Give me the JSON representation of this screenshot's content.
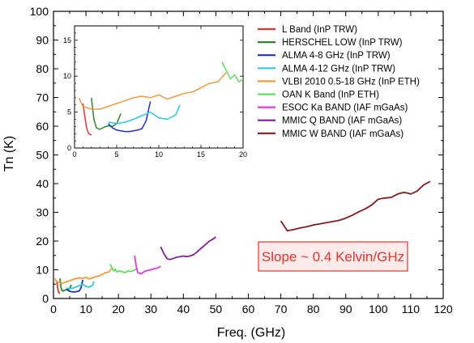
{
  "chart_data": {
    "type": "line",
    "xlabel": "Freq. (GHz)",
    "ylabel": "Tn (K)",
    "xlim": [
      0,
      120
    ],
    "ylim": [
      0,
      100
    ],
    "x_ticks": [
      0,
      10,
      20,
      30,
      40,
      50,
      60,
      70,
      80,
      90,
      100,
      110,
      120
    ],
    "y_ticks": [
      0,
      10,
      20,
      30,
      40,
      50,
      60,
      70,
      80,
      90,
      100
    ],
    "grid": false,
    "legend_position": "top-right",
    "annotation": {
      "text": "Slope ~ 0.4 Kelvin/GHz",
      "color": "#e8332a",
      "border_color": "#e8332a",
      "fill": "#fdeaea"
    },
    "series": [
      {
        "name": "L Band (InP TRW)",
        "color": "#e8332a",
        "x": [
          1.0,
          1.2,
          1.4,
          1.6,
          1.8,
          2.0
        ],
        "y": [
          6.2,
          4.5,
          3.0,
          2.2,
          1.9,
          1.8
        ]
      },
      {
        "name": "HERSCHEL LOW (InP TRW)",
        "color": "#2a8a2a",
        "x": [
          2.0,
          2.3,
          2.6,
          3.0,
          3.5,
          4.0,
          4.5,
          5.0,
          5.5
        ],
        "y": [
          7.0,
          4.0,
          2.8,
          2.6,
          2.9,
          3.1,
          3.0,
          3.4,
          4.8
        ]
      },
      {
        "name": "ALMA 4-8 GHz (InP TRW)",
        "color": "#1a2fd6",
        "x": [
          4.0,
          4.5,
          5.0,
          5.5,
          6.0,
          6.5,
          7.0,
          7.5,
          8.0,
          8.5,
          9.0
        ],
        "y": [
          3.4,
          2.8,
          2.5,
          2.4,
          2.3,
          2.3,
          2.4,
          2.5,
          2.7,
          3.8,
          6.5
        ]
      },
      {
        "name": "ALMA 4-12 GHz (InP TRW)",
        "color": "#2ec8e8",
        "x": [
          4.0,
          5.0,
          6.0,
          7.0,
          8.0,
          9.0,
          10.0,
          11.0,
          12.0,
          12.5
        ],
        "y": [
          3.6,
          3.4,
          3.6,
          4.0,
          4.5,
          5.0,
          4.2,
          4.0,
          4.6,
          6.0
        ]
      },
      {
        "name": "VLBI 2010 0.5-18 GHz (InP ETH)",
        "color": "#f39a3a",
        "x": [
          0.5,
          1.0,
          2.0,
          3.0,
          4.0,
          5.0,
          6.0,
          7.0,
          8.0,
          9.0,
          10.0,
          11.0,
          12.0,
          13.0,
          14.0,
          15.0,
          16.0,
          17.0,
          18.0
        ],
        "y": [
          7.0,
          5.8,
          5.4,
          5.4,
          5.8,
          6.2,
          6.6,
          7.0,
          7.2,
          7.0,
          7.4,
          6.8,
          7.2,
          7.6,
          7.8,
          8.4,
          9.0,
          9.2,
          10.5
        ]
      },
      {
        "name": "OAN K Band (InP ETH)",
        "color": "#5ee05e",
        "x": [
          17.5,
          18.0,
          18.5,
          19.0,
          19.5,
          20.0,
          21.0,
          22.0,
          23.0,
          24.0,
          25.0,
          26.0
        ],
        "y": [
          12.0,
          10.8,
          9.6,
          10.2,
          9.2,
          9.6,
          9.4,
          9.0,
          9.6,
          9.4,
          10.0,
          10.4
        ]
      },
      {
        "name": "ESOC Ka BAND (IAF mGaAs)",
        "color": "#e838e0",
        "x": [
          25.0,
          25.5,
          26.0,
          27.0,
          28.0,
          29.0,
          30.0,
          31.0,
          32.0,
          33.0
        ],
        "y": [
          15.0,
          11.0,
          9.0,
          8.6,
          9.4,
          9.8,
          10.0,
          10.4,
          10.6,
          11.2
        ]
      },
      {
        "name": "MMIC Q BAND (IAF mGaAs)",
        "color": "#8a1a9a",
        "x": [
          33.0,
          34.0,
          35.0,
          36.0,
          37.0,
          38.0,
          39.0,
          40.0,
          41.0,
          42.0,
          43.0,
          44.0,
          45.0,
          46.0,
          47.0,
          48.0,
          49.0,
          50.0
        ],
        "y": [
          18.0,
          15.6,
          13.8,
          13.6,
          14.0,
          14.4,
          14.6,
          14.8,
          14.6,
          14.8,
          15.2,
          16.0,
          17.0,
          18.0,
          19.0,
          20.0,
          20.6,
          21.4
        ]
      },
      {
        "name": "MMIC W BAND (IAF mGaAs)",
        "color": "#8b1a1a",
        "x": [
          70.0,
          72.0,
          74.0,
          76.0,
          78.0,
          80.0,
          82.0,
          84.0,
          86.0,
          88.0,
          90.0,
          92.0,
          94.0,
          96.0,
          98.0,
          100.0,
          102.0,
          104.0,
          106.0,
          108.0,
          110.0,
          112.0,
          114.0,
          116.0
        ],
        "y": [
          27.0,
          23.6,
          24.0,
          24.6,
          25.0,
          25.6,
          26.0,
          26.4,
          26.8,
          27.2,
          28.0,
          29.0,
          30.2,
          31.2,
          32.6,
          34.6,
          35.0,
          35.2,
          36.4,
          37.0,
          36.4,
          37.4,
          39.6,
          40.8
        ]
      }
    ],
    "inset": {
      "xlim": [
        0,
        20
      ],
      "ylim": [
        0,
        17
      ],
      "x_ticks": [
        0,
        5,
        10,
        15,
        20
      ],
      "y_ticks": [
        0,
        5,
        10,
        15
      ]
    }
  }
}
